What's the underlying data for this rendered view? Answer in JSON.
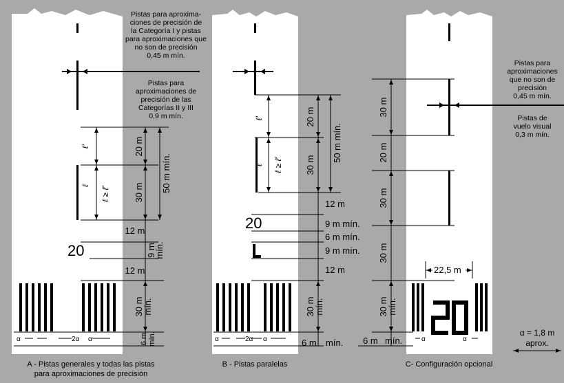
{
  "notes": {
    "cat1": [
      "Pistas para aproxima-",
      "ciones de precisión de",
      "la Categoría I y pistas",
      "para aproximaciones que",
      "no son de precisión",
      "0,45 m mín."
    ],
    "cat23": [
      "Pistas para",
      "aproximaciones de",
      "precisión de las",
      "Categorías II y III",
      "0,9 m mín."
    ],
    "nonprec": [
      "Pistas para",
      "aproximaciones",
      "que no son de",
      "precisión",
      "0,45 m mín."
    ],
    "visual": [
      "Pistas de",
      "vuelo visual",
      "0,3 m mín."
    ]
  },
  "dims": {
    "d20m": "20 m",
    "d30m": "30 m",
    "d50m": "50 m mín.",
    "d12m": "12 m",
    "d9m_stacked": [
      "9 m",
      "mín."
    ],
    "d30m_min": [
      "30 m",
      "mín."
    ],
    "d6m_min": [
      "6 m",
      "mín."
    ],
    "d9m_min": "9 m mín.",
    "d6m_min_inline": "6 m mín.",
    "d6m_bottom": "6 m",
    "d_min": "mín.",
    "d22": "22,5 m"
  },
  "symbols": {
    "l": "ℓ",
    "lp": "ℓ'",
    "l_ge_lp": "ℓ ≥ ℓ'",
    "alpha": "α",
    "two_alpha": "2α"
  },
  "designators": {
    "twenty": "20",
    "left": "L"
  },
  "alpha_note": [
    "α = 1,8 m",
    "aprox."
  ],
  "captions": {
    "a": [
      "A - Pistas generales y todas las pistas",
      "para aproximaciones de precisión"
    ],
    "b": "B - Pistas paralelas",
    "c": "C- Configuración opcional"
  }
}
